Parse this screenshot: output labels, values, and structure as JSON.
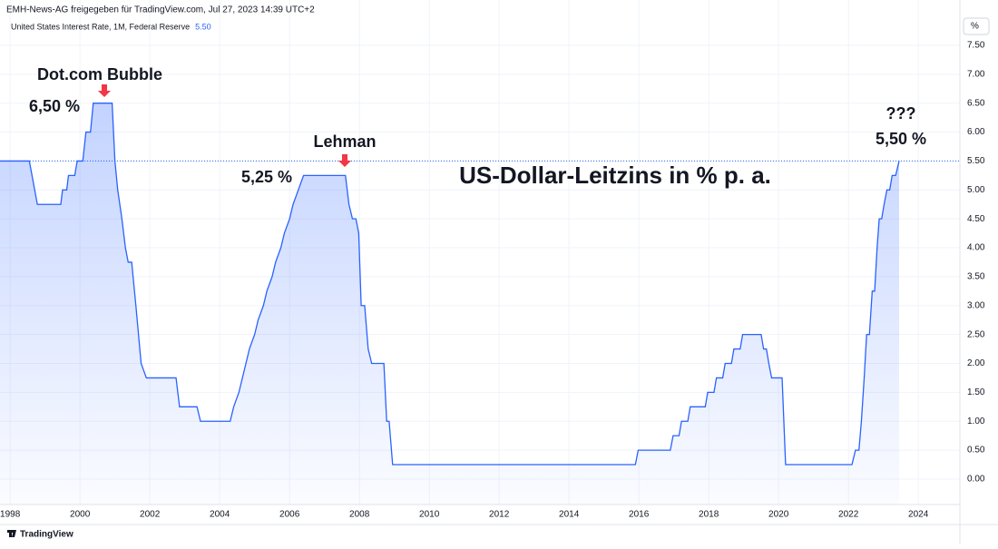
{
  "chart_data": {
    "type": "line",
    "header": "EMH-News-AG freigegeben für TradingView.com, Jul 27, 2023 14:39 UTC+2",
    "title": "US-Dollar-Leitzins in % p. a.",
    "y_unit": "%",
    "branding": "TradingView",
    "grid": true,
    "xlim": [
      1997.71,
      2025.19
    ],
    "ylim": [
      -0.44,
      7.97
    ],
    "xticks": [
      1998,
      2000,
      2002,
      2004,
      2006,
      2008,
      2010,
      2012,
      2014,
      2016,
      2018,
      2020,
      2022,
      2024
    ],
    "yticks": [
      {
        "value": 0,
        "label": "0.00"
      },
      {
        "value": 0.5,
        "label": "0.50"
      },
      {
        "value": 1,
        "label": "1.00"
      },
      {
        "value": 1.5,
        "label": "1.50"
      },
      {
        "value": 2,
        "label": "2.00"
      },
      {
        "value": 2.5,
        "label": "2.50"
      },
      {
        "value": 3,
        "label": "3.00"
      },
      {
        "value": 3.5,
        "label": "3.50"
      },
      {
        "value": 4,
        "label": "4.00"
      },
      {
        "value": 4.5,
        "label": "4.50"
      },
      {
        "value": 5,
        "label": "5.00"
      },
      {
        "value": 5.5,
        "label": "5.50"
      },
      {
        "value": 6,
        "label": "6.00"
      },
      {
        "value": 6.5,
        "label": "6.50"
      },
      {
        "value": 7,
        "label": "7.00"
      },
      {
        "value": 7.5,
        "label": "7.50"
      }
    ],
    "x": [
      1997.71,
      1998.55,
      1998.78,
      1999.45,
      1999.5,
      1999.62,
      1999.67,
      1999.85,
      1999.92,
      2000.08,
      2000.17,
      2000.3,
      2000.38,
      2000.92,
      2001.0,
      2001.08,
      2001.2,
      2001.3,
      2001.38,
      2001.48,
      2001.6,
      2001.75,
      2001.9,
      2002.75,
      2002.85,
      2003.35,
      2003.45,
      2004.3,
      2004.4,
      2004.55,
      2004.65,
      2004.75,
      2004.85,
      2005.0,
      2005.1,
      2005.25,
      2005.35,
      2005.5,
      2005.6,
      2005.75,
      2005.85,
      2006.0,
      2006.1,
      2006.25,
      2006.4,
      2007.6,
      2007.7,
      2007.8,
      2007.9,
      2007.98,
      2008.05,
      2008.15,
      2008.25,
      2008.35,
      2008.7,
      2008.78,
      2008.85,
      2008.95,
      2015.9,
      2015.98,
      2016.9,
      2016.98,
      2017.15,
      2017.22,
      2017.4,
      2017.47,
      2017.9,
      2017.97,
      2018.15,
      2018.22,
      2018.4,
      2018.47,
      2018.65,
      2018.72,
      2018.9,
      2018.97,
      2019.5,
      2019.57,
      2019.65,
      2019.72,
      2019.8,
      2020.1,
      2020.2,
      2022.1,
      2022.2,
      2022.3,
      2022.37,
      2022.45,
      2022.52,
      2022.6,
      2022.68,
      2022.75,
      2022.82,
      2022.88,
      2022.95,
      2023.02,
      2023.1,
      2023.18,
      2023.25,
      2023.35,
      2023.45
    ],
    "series": [
      {
        "name": "United States Interest Rate, 1M, Federal Reserve",
        "color": "#2962ff",
        "last_value_label": "5.50",
        "values": [
          5.5,
          5.5,
          4.75,
          4.75,
          5.0,
          5.0,
          5.25,
          5.25,
          5.5,
          5.5,
          6.0,
          6.0,
          6.5,
          6.5,
          5.5,
          5.0,
          4.5,
          4.0,
          3.75,
          3.75,
          3.0,
          2.0,
          1.75,
          1.75,
          1.25,
          1.25,
          1.0,
          1.0,
          1.25,
          1.5,
          1.75,
          2.0,
          2.25,
          2.5,
          2.75,
          3.0,
          3.25,
          3.5,
          3.75,
          4.0,
          4.25,
          4.5,
          4.75,
          5.0,
          5.25,
          5.25,
          4.75,
          4.5,
          4.5,
          4.25,
          3.0,
          3.0,
          2.25,
          2.0,
          2.0,
          1.0,
          1.0,
          0.25,
          0.25,
          0.5,
          0.5,
          0.75,
          0.75,
          1.0,
          1.0,
          1.25,
          1.25,
          1.5,
          1.5,
          1.75,
          1.75,
          2.0,
          2.0,
          2.25,
          2.25,
          2.5,
          2.5,
          2.25,
          2.25,
          2.0,
          1.75,
          1.75,
          0.25,
          0.25,
          0.5,
          0.5,
          1.0,
          1.75,
          2.5,
          2.5,
          3.25,
          3.25,
          4.0,
          4.5,
          4.5,
          4.75,
          5.0,
          5.0,
          5.25,
          5.25,
          5.5
        ]
      }
    ],
    "annotations": [
      "Dot.com Bubble",
      "6,50 %",
      "Lehman",
      "5,25 %",
      "???",
      "5,50 %"
    ]
  }
}
